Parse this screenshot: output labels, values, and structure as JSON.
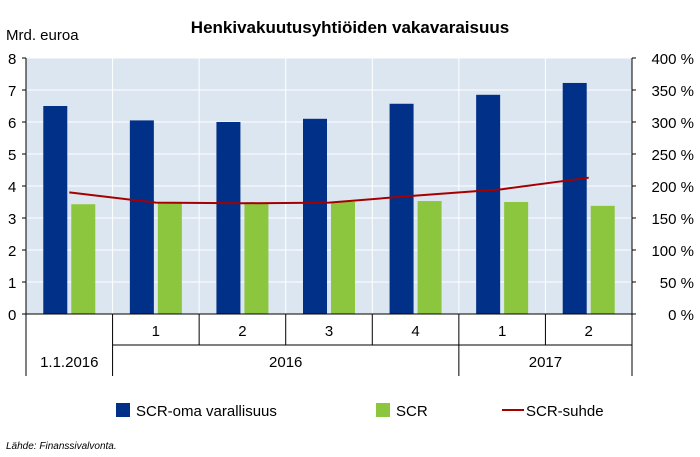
{
  "chart_data": {
    "type": "bar",
    "title": "Henkivakuutusyhtiöiden vakavaraisuus",
    "ylabel": "Mrd. euroa",
    "ylim": [
      0,
      8
    ],
    "y2lim": [
      0,
      400
    ],
    "yticks": [
      "0",
      "1",
      "2",
      "3",
      "4",
      "5",
      "6",
      "7",
      "8"
    ],
    "y2ticks": [
      "0 %",
      "50 %",
      "100 %",
      "150 %",
      "200 %",
      "250 %",
      "300 %",
      "350 %",
      "400 %"
    ],
    "categories": [
      "",
      "1",
      "2",
      "3",
      "4",
      "1",
      "2"
    ],
    "category_groups": [
      {
        "label": "1.1.2016",
        "span": 1
      },
      {
        "label": "2016",
        "span": 4
      },
      {
        "label": "2017",
        "span": 2
      }
    ],
    "series": [
      {
        "name": "SCR-oma varallisuus",
        "type": "bar",
        "axis": "left",
        "color": "#003087",
        "values": [
          6.5,
          6.05,
          6.0,
          6.1,
          6.57,
          6.85,
          7.22
        ]
      },
      {
        "name": "SCR",
        "type": "bar",
        "axis": "left",
        "color": "#8cc63f",
        "values": [
          3.43,
          3.48,
          3.45,
          3.5,
          3.53,
          3.5,
          3.38
        ]
      },
      {
        "name": "SCR-suhde",
        "type": "line",
        "axis": "right",
        "color": "#a50000",
        "values": [
          190,
          174,
          173,
          174,
          185,
          195,
          213
        ]
      }
    ],
    "grid": true,
    "legend": "bottom"
  },
  "source_note": "Lähde: Finanssivalvonta."
}
